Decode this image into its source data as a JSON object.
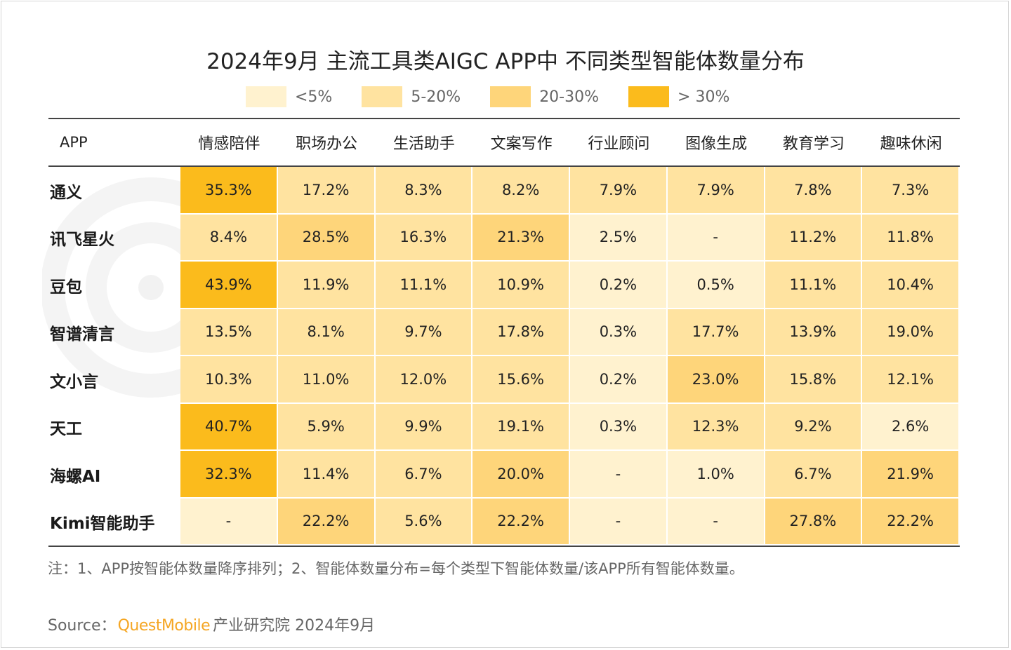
{
  "title": "2024年9月 主流工具类AIGC APP中 不同类型智能体数量分布",
  "legend": [
    {
      "label": "<5%",
      "color": "#fff2cf"
    },
    {
      "label": "5-20%",
      "color": "#ffe3a0"
    },
    {
      "label": "20-30%",
      "color": "#fed57a"
    },
    {
      "label": "> 30%",
      "color": "#fbbb1c"
    }
  ],
  "chart_data": {
    "type": "heatmap",
    "title": "2024年9月 主流工具类AIGC APP中 不同类型智能体数量分布",
    "row_header": "APP",
    "columns": [
      "情感陪伴",
      "职场办公",
      "生活助手",
      "文案写作",
      "行业顾问",
      "图像生成",
      "教育学习",
      "趣味休闲"
    ],
    "rows": [
      {
        "name": "通义",
        "values": [
          "35.3%",
          "17.2%",
          "8.3%",
          "8.2%",
          "7.9%",
          "7.9%",
          "7.8%",
          "7.3%"
        ]
      },
      {
        "name": "讯飞星火",
        "values": [
          "8.4%",
          "28.5%",
          "16.3%",
          "21.3%",
          "2.5%",
          "-",
          "11.2%",
          "11.8%"
        ]
      },
      {
        "name": "豆包",
        "values": [
          "43.9%",
          "11.9%",
          "11.1%",
          "10.9%",
          "0.2%",
          "0.5%",
          "11.1%",
          "10.4%"
        ]
      },
      {
        "name": "智谱清言",
        "values": [
          "13.5%",
          "8.1%",
          "9.7%",
          "17.8%",
          "0.3%",
          "17.7%",
          "13.9%",
          "19.0%"
        ]
      },
      {
        "name": "文小言",
        "values": [
          "10.3%",
          "11.0%",
          "12.0%",
          "15.6%",
          "0.2%",
          "23.0%",
          "15.8%",
          "12.1%"
        ]
      },
      {
        "name": "天工",
        "values": [
          "40.7%",
          "5.9%",
          "9.9%",
          "19.1%",
          "0.3%",
          "12.3%",
          "9.2%",
          "2.6%"
        ]
      },
      {
        "name": "海螺AI",
        "values": [
          "32.3%",
          "11.4%",
          "6.7%",
          "20.0%",
          "-",
          "1.0%",
          "6.7%",
          "21.9%"
        ]
      },
      {
        "name": "Kimi智能助手",
        "values": [
          "-",
          "22.2%",
          "5.6%",
          "22.2%",
          "-",
          "-",
          "27.8%",
          "22.2%"
        ]
      }
    ],
    "color_bins": [
      {
        "label": "<5%",
        "color": "#fff2cf"
      },
      {
        "label": "5-20%",
        "color": "#ffe3a0"
      },
      {
        "label": "20-30%",
        "color": "#fed57a"
      },
      {
        "label": "> 30%",
        "color": "#fbbb1c"
      }
    ]
  },
  "note": "注：1、APP按智能体数量降序排列；2、智能体数量分布=每个类型下智能体数量/该APP所有智能体数量。",
  "source": {
    "prefix": "Source：",
    "brand": "QuestMobile",
    "suffix": "产业研究院 2024年9月"
  }
}
